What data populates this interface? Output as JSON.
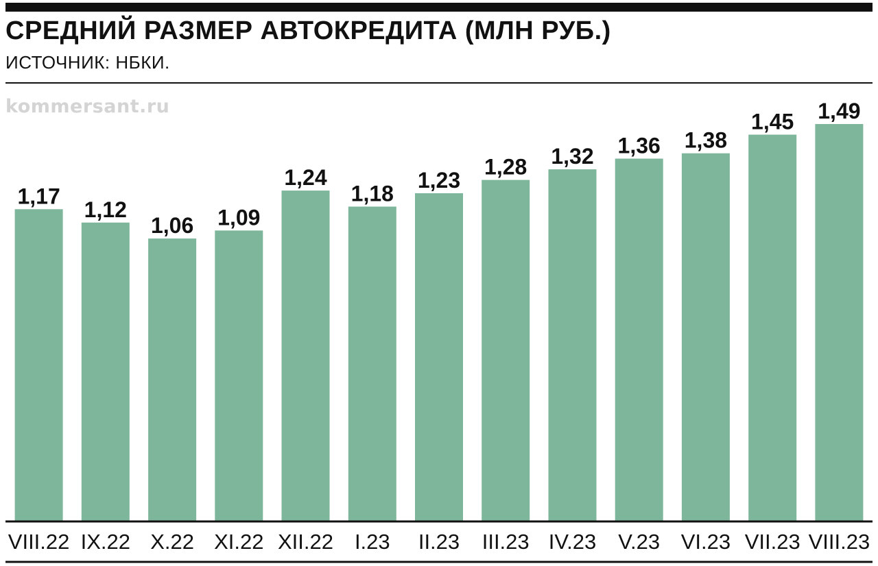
{
  "header": {
    "title": "СРЕДНИЙ РАЗМЕР АВТОКРЕДИТА (МЛН РУБ.)",
    "source": "ИСТОЧНИК: НБКИ."
  },
  "watermark": "kommersant.ru",
  "colors": {
    "bar": "#7db69a",
    "text": "#111111",
    "watermark": "#d4d4d4"
  },
  "chart_data": {
    "type": "bar",
    "title": "СРЕДНИЙ РАЗМЕР АВТОКРЕДИТА (МЛН РУБ.)",
    "subtitle": "ИСТОЧНИК: НБКИ.",
    "xlabel": "",
    "ylabel": "",
    "ylim": [
      0,
      1.6
    ],
    "grid": false,
    "legend": "none",
    "categories": [
      "VIII.22",
      "IX.22",
      "X.22",
      "XI.22",
      "XII.22",
      "I.23",
      "II.23",
      "III.23",
      "IV.23",
      "V.23",
      "VI.23",
      "VII.23",
      "VIII.23"
    ],
    "values": [
      1.17,
      1.12,
      1.06,
      1.09,
      1.24,
      1.18,
      1.23,
      1.28,
      1.32,
      1.36,
      1.38,
      1.45,
      1.49
    ],
    "data_labels": [
      "1,17",
      "1,12",
      "1,06",
      "1,09",
      "1,24",
      "1,18",
      "1,23",
      "1,28",
      "1,32",
      "1,36",
      "1,38",
      "1,45",
      "1,49"
    ]
  }
}
